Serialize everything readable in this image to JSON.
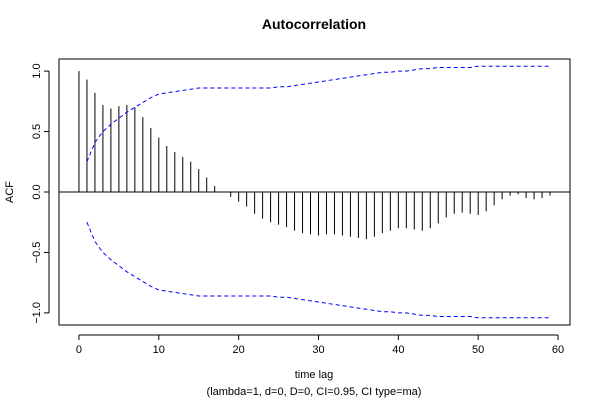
{
  "chart_data": {
    "type": "bar",
    "title": "Autocorrelation",
    "xlabel": "time lag",
    "ylabel": "ACF",
    "subtitle": "(lambda=1, d=0, D=0, CI=0.95, CI type=ma)",
    "xlim": [
      -2.5,
      61.5
    ],
    "ylim": [
      -1.1,
      1.1
    ],
    "x_ticks": [
      0,
      10,
      20,
      30,
      40,
      50,
      60
    ],
    "x_tick_labels": [
      "0",
      "10",
      "20",
      "30",
      "40",
      "50",
      "60"
    ],
    "y_ticks": [
      -1.0,
      -0.5,
      0.0,
      0.5,
      1.0
    ],
    "y_tick_labels": [
      "−1.0",
      "−0.5",
      "0.0",
      "0.5",
      "1.0"
    ],
    "lags": [
      0,
      1,
      2,
      3,
      4,
      5,
      6,
      7,
      8,
      9,
      10,
      11,
      12,
      13,
      14,
      15,
      16,
      17,
      18,
      19,
      20,
      21,
      22,
      23,
      24,
      25,
      26,
      27,
      28,
      29,
      30,
      31,
      32,
      33,
      34,
      35,
      36,
      37,
      38,
      39,
      40,
      41,
      42,
      43,
      44,
      45,
      46,
      47,
      48,
      49,
      50,
      51,
      52,
      53,
      54,
      55,
      56,
      57,
      58,
      59
    ],
    "acf": [
      1.0,
      0.93,
      0.82,
      0.72,
      0.69,
      0.71,
      0.72,
      0.7,
      0.62,
      0.53,
      0.45,
      0.38,
      0.33,
      0.29,
      0.25,
      0.19,
      0.12,
      0.05,
      0.0,
      -0.04,
      -0.08,
      -0.12,
      -0.18,
      -0.22,
      -0.25,
      -0.27,
      -0.29,
      -0.32,
      -0.34,
      -0.35,
      -0.36,
      -0.35,
      -0.35,
      -0.36,
      -0.37,
      -0.38,
      -0.39,
      -0.37,
      -0.34,
      -0.32,
      -0.3,
      -0.3,
      -0.31,
      -0.32,
      -0.3,
      -0.26,
      -0.21,
      -0.18,
      -0.17,
      -0.18,
      -0.19,
      -0.16,
      -0.11,
      -0.06,
      -0.03,
      -0.02,
      -0.05,
      -0.06,
      -0.05,
      -0.03
    ],
    "ci_upper": [
      null,
      0.25,
      0.41,
      0.5,
      0.56,
      0.61,
      0.66,
      0.7,
      0.74,
      0.78,
      0.81,
      0.82,
      0.83,
      0.84,
      0.85,
      0.86,
      0.86,
      0.86,
      0.86,
      0.86,
      0.86,
      0.86,
      0.86,
      0.86,
      0.86,
      0.87,
      0.87,
      0.88,
      0.89,
      0.9,
      0.91,
      0.92,
      0.93,
      0.94,
      0.95,
      0.96,
      0.97,
      0.98,
      0.99,
      0.99,
      1.0,
      1.0,
      1.01,
      1.02,
      1.02,
      1.03,
      1.03,
      1.03,
      1.03,
      1.03,
      1.04,
      1.04,
      1.04,
      1.04,
      1.04,
      1.04,
      1.04,
      1.04,
      1.04,
      1.04
    ],
    "ci_lower": [
      null,
      -0.25,
      -0.41,
      -0.5,
      -0.56,
      -0.61,
      -0.66,
      -0.7,
      -0.74,
      -0.78,
      -0.81,
      -0.82,
      -0.83,
      -0.84,
      -0.85,
      -0.86,
      -0.86,
      -0.86,
      -0.86,
      -0.86,
      -0.86,
      -0.86,
      -0.86,
      -0.86,
      -0.86,
      -0.87,
      -0.87,
      -0.88,
      -0.89,
      -0.9,
      -0.91,
      -0.92,
      -0.93,
      -0.94,
      -0.95,
      -0.96,
      -0.97,
      -0.98,
      -0.99,
      -0.99,
      -1.0,
      -1.0,
      -1.01,
      -1.02,
      -1.02,
      -1.03,
      -1.03,
      -1.03,
      -1.03,
      -1.03,
      -1.04,
      -1.04,
      -1.04,
      -1.04,
      -1.04,
      -1.04,
      -1.04,
      -1.04,
      -1.04,
      -1.04
    ],
    "colors": {
      "bars": "#000000",
      "ci": "#0000ff",
      "zero_line": "#000000",
      "frame": "#000000"
    },
    "grid": false,
    "legend": "none"
  }
}
